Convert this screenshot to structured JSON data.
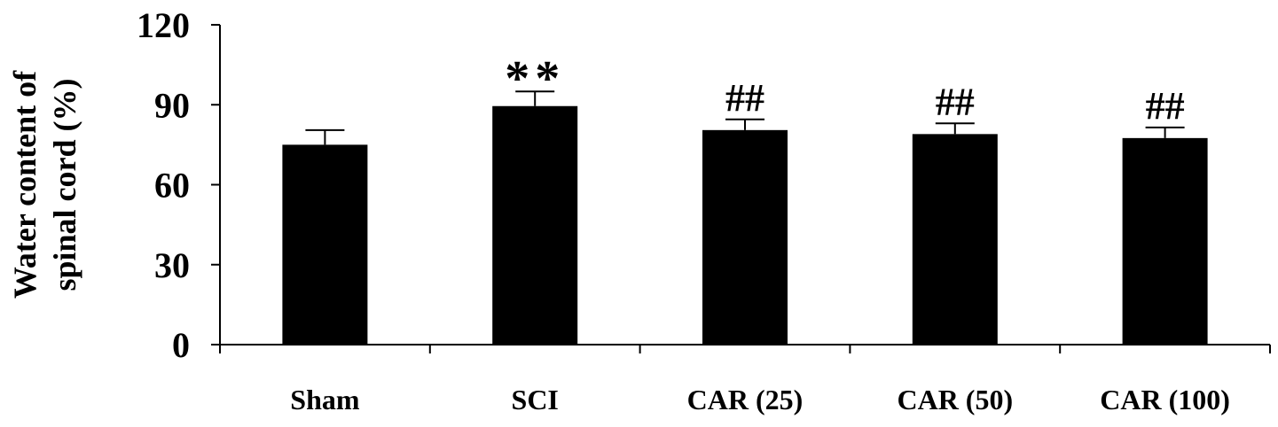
{
  "chart_data": {
    "type": "bar",
    "title": "",
    "xlabel": "",
    "ylabel_lines": [
      "Water content of",
      "spinal cord (%)"
    ],
    "ylim": [
      0,
      120
    ],
    "yticks": [
      0,
      30,
      60,
      90,
      120
    ],
    "categories": [
      "Sham",
      "SCI",
      "CAR (25)",
      "CAR (50)",
      "CAR (100)"
    ],
    "values": [
      75,
      89.5,
      80.5,
      79,
      77.5
    ],
    "errors": [
      5.5,
      5.5,
      4,
      4,
      4
    ],
    "annotations": [
      "",
      "**",
      "##",
      "##",
      "##"
    ],
    "bar_color": "#000000",
    "grid": false,
    "legend": "none"
  }
}
